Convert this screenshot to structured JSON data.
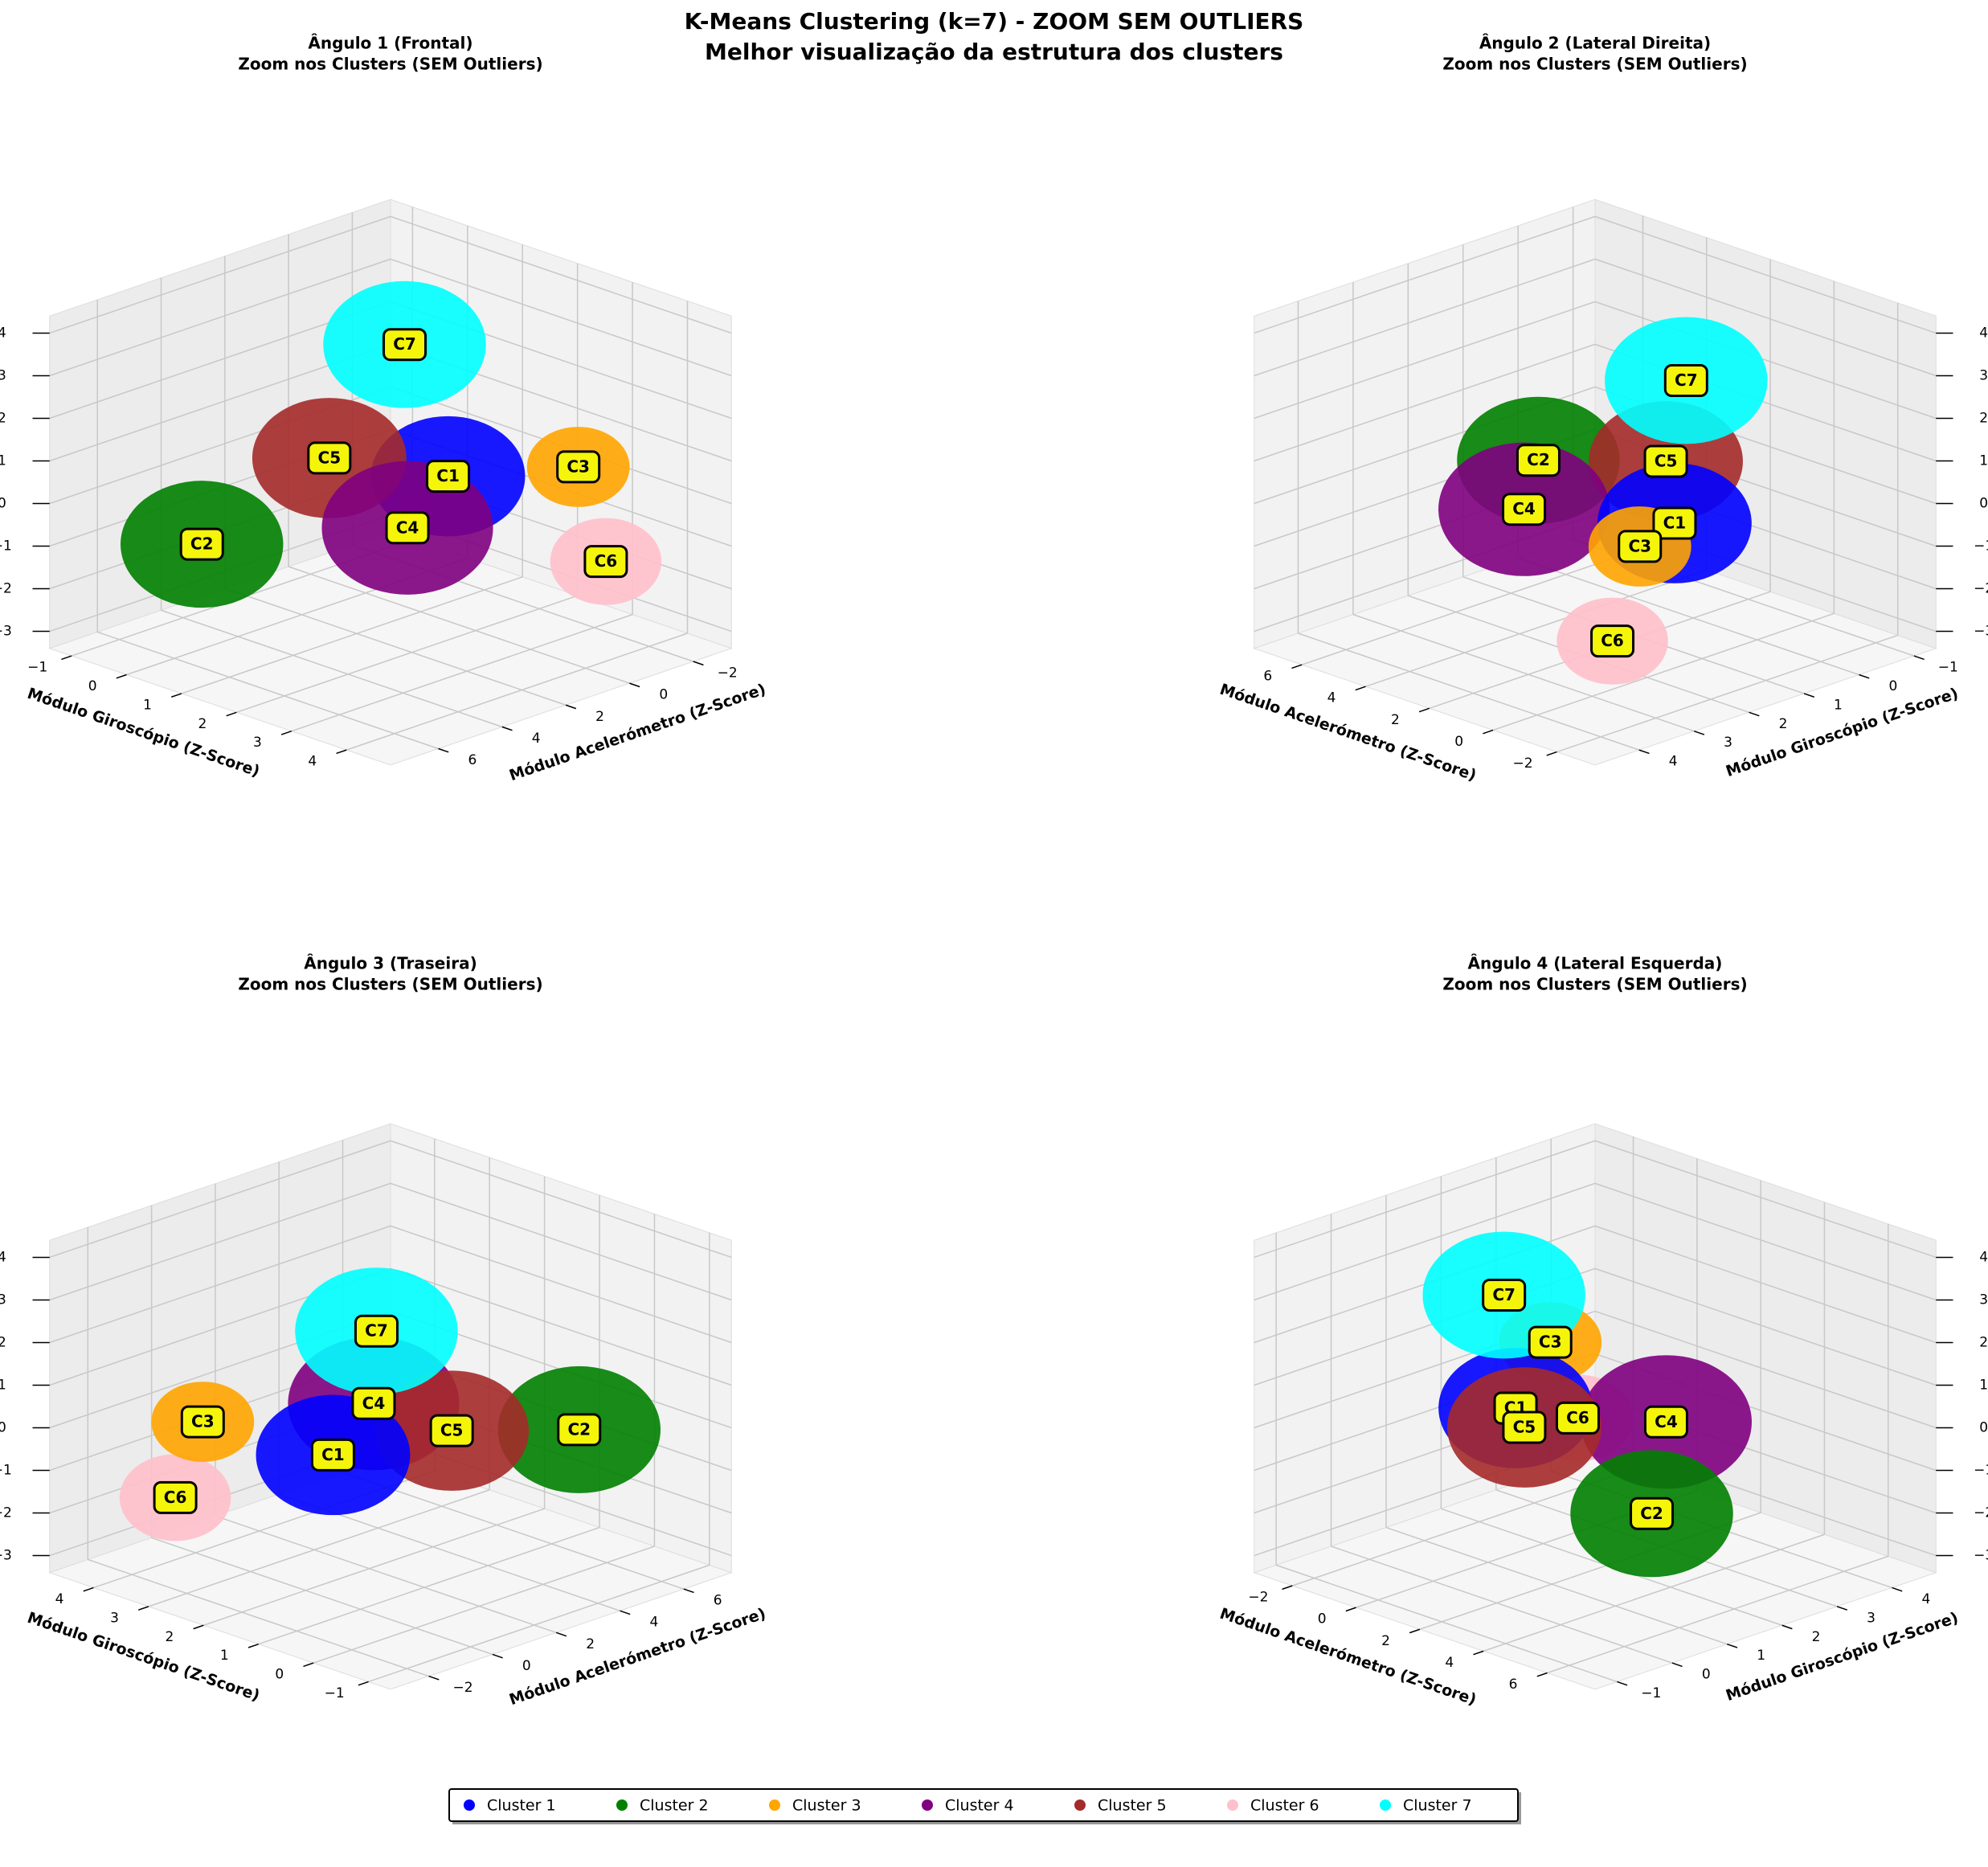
{
  "title": "K-Means Clustering (k=7) - ZOOM SEM OUTLIERS",
  "subtitle": "Melhor visualização da estrutura dos clusters",
  "clusters": [
    {
      "name": "Cluster 1",
      "label": "C1",
      "color": "#0000ff",
      "x": 0,
      "y": 1.5,
      "z": 0,
      "spread": 1.8
    },
    {
      "name": "Cluster 2",
      "label": "C2",
      "color": "#008000",
      "x": 6,
      "y": 0.5,
      "z": -0.5,
      "spread": 1.9
    },
    {
      "name": "Cluster 3",
      "label": "C3",
      "color": "#ffa500",
      "x": -1.5,
      "y": 3,
      "z": 0.5,
      "spread": 1.2
    },
    {
      "name": "Cluster 4",
      "label": "C4",
      "color": "#800080",
      "x": 3,
      "y": 2.5,
      "z": 0,
      "spread": 2.0
    },
    {
      "name": "Cluster 5",
      "label": "C5",
      "color": "#a52a2a",
      "x": 2,
      "y": 0.5,
      "z": 0.5,
      "spread": 1.8
    },
    {
      "name": "Cluster 6",
      "label": "C6",
      "color": "#ffc0cb",
      "x": -1.5,
      "y": 3.5,
      "z": -1.5,
      "spread": 1.3
    },
    {
      "name": "Cluster 7",
      "label": "C7",
      "color": "#00ffff",
      "x": 0.5,
      "y": 1,
      "z": 3,
      "spread": 1.9
    }
  ],
  "chart_data": [
    {
      "type": "scatter3d",
      "title": "Ângulo 1 (Frontal)",
      "subtitle": "Zoom nos Clusters (SEM Outliers)",
      "xlabel": "Módulo Acelerómetro (Z-Score)",
      "ylabel": "Módulo Giroscópio (Z-Score)",
      "xlim": [
        -3.2,
        7.5
      ],
      "ylim": [
        -1.4,
        4.8
      ],
      "zlim": [
        -3.4,
        4.4
      ],
      "xticks": [
        {
          "value": -2,
          "label": "−2"
        },
        0,
        2,
        4,
        6
      ],
      "yticks": [
        {
          "value": -1,
          "label": "−1"
        },
        0,
        1,
        2,
        3,
        4
      ],
      "zticks": [
        {
          "value": -3,
          "label": "−3"
        },
        {
          "value": -2,
          "label": "−2"
        },
        {
          "value": -1,
          "label": "−1"
        },
        0,
        1,
        2,
        3,
        4
      ],
      "grid": true
    },
    {
      "type": "scatter3d",
      "title": "Ângulo 2 (Lateral Direita)",
      "subtitle": "Zoom nos Clusters (SEM Outliers)",
      "xlabel": "Módulo Acelerómetro (Z-Score)",
      "ylabel": "Módulo Giroscópio (Z-Score)",
      "xlim": [
        -3.2,
        7.5
      ],
      "ylim": [
        -1.4,
        4.8
      ],
      "zlim": [
        -3.4,
        4.4
      ],
      "xticks": [
        {
          "value": -2,
          "label": "−2"
        },
        0,
        2,
        4,
        6
      ],
      "yticks": [
        {
          "value": -1,
          "label": "−1"
        },
        0,
        1,
        2,
        3,
        4
      ],
      "zticks": [
        {
          "value": -3,
          "label": "−3"
        },
        {
          "value": -2,
          "label": "−2"
        },
        {
          "value": -1,
          "label": "−1"
        },
        0,
        1,
        2,
        3,
        4
      ],
      "grid": true
    },
    {
      "type": "scatter3d",
      "title": "Ângulo 3 (Traseira)",
      "subtitle": "Zoom nos Clusters (SEM Outliers)",
      "xlabel": "Módulo Acelerómetro (Z-Score)",
      "ylabel": "Módulo Giroscópio (Z-Score)",
      "xlim": [
        -3.2,
        7.5
      ],
      "ylim": [
        -1.4,
        4.8
      ],
      "zlim": [
        -3.4,
        4.4
      ],
      "xticks": [
        {
          "value": -2,
          "label": "−2"
        },
        0,
        2,
        4,
        6
      ],
      "yticks": [
        {
          "value": -1,
          "label": "−1"
        },
        0,
        1,
        2,
        3,
        4
      ],
      "zticks": [
        {
          "value": -3,
          "label": "−3"
        },
        {
          "value": -2,
          "label": "−2"
        },
        {
          "value": -1,
          "label": "−1"
        },
        0,
        1,
        2,
        3,
        4
      ],
      "grid": true
    },
    {
      "type": "scatter3d",
      "title": "Ângulo 4 (Lateral Esquerda)",
      "subtitle": "Zoom nos Clusters (SEM Outliers)",
      "xlabel": "Módulo Acelerómetro (Z-Score)",
      "ylabel": "Módulo Giroscópio (Z-Score)",
      "xlim": [
        -3.2,
        7.5
      ],
      "ylim": [
        -1.4,
        4.8
      ],
      "zlim": [
        -3.4,
        4.4
      ],
      "xticks": [
        {
          "value": -2,
          "label": "−2"
        },
        0,
        2,
        4,
        6
      ],
      "yticks": [
        {
          "value": -1,
          "label": "−1"
        },
        0,
        1,
        2,
        3,
        4
      ],
      "zticks": [
        {
          "value": -3,
          "label": "−3"
        },
        {
          "value": -2,
          "label": "−2"
        },
        {
          "value": -1,
          "label": "−1"
        },
        0,
        1,
        2,
        3,
        4
      ],
      "grid": true
    }
  ]
}
